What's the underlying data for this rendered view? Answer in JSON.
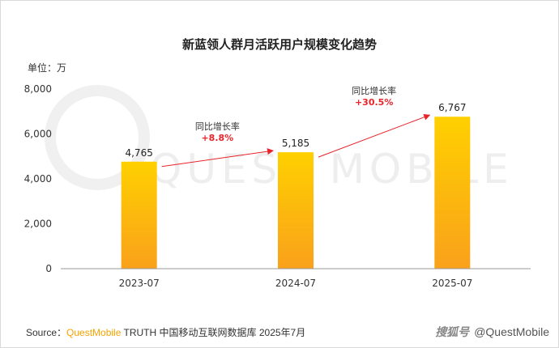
{
  "chart_data": {
    "type": "bar",
    "title": "新蓝领人群月活跃用户规模变化趋势",
    "unit_label": "单位：万",
    "categories": [
      "2023-07",
      "2024-07",
      "2025-07"
    ],
    "values": [
      4765,
      5185,
      6767
    ],
    "value_labels": [
      "4,765",
      "5,185",
      "6,767"
    ],
    "ylim": [
      0,
      8000
    ],
    "yticks": [
      0,
      2000,
      4000,
      6000,
      8000
    ],
    "ytick_labels": [
      "0",
      "2,000",
      "4,000",
      "6,000",
      "8,000"
    ],
    "grid": false,
    "legend": "none",
    "annotations": [
      {
        "label": "同比增长率",
        "value": "+8.8%"
      },
      {
        "label": "同比增长率",
        "value": "+30.5%"
      }
    ],
    "colors": {
      "bar_top": "#ffd000",
      "bar_bottom": "#f9a11b",
      "arrow": "#e8242a"
    }
  },
  "watermark": "QUEST MOBILE",
  "footer": {
    "source_prefix": "Source：",
    "brand": "QuestMobile",
    "source_rest": " TRUTH 中国移动互联网数据库 2025年7月"
  },
  "credit": {
    "site": "搜狐号",
    "handle": "@QuestMobile"
  }
}
